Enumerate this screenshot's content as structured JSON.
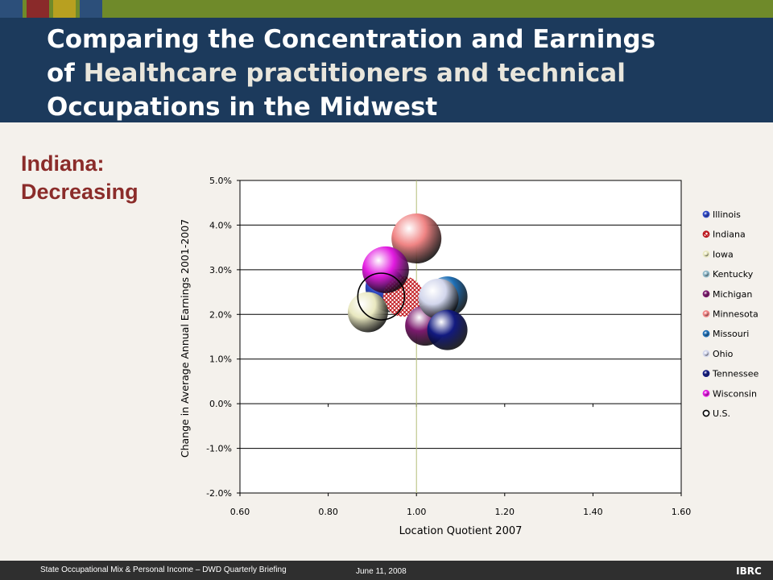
{
  "colors": {
    "band": "#1c3a5c",
    "strip": "#6f8a2a",
    "subhead": "#8b2c2a",
    "squares": [
      "#2c4f7a",
      "#8a2a2a",
      "#b8a020",
      "#2c4f7a"
    ]
  },
  "slide": {
    "title_line1": "Comparing the Concentration and Earnings",
    "title_line2_prefix": "of ",
    "title_line2_highlight": "Healthcare practitioners and technical",
    "title_line3": "Occupations in the Midwest",
    "subhead_line1": "Indiana:",
    "subhead_line2": "Decreasing"
  },
  "footer": {
    "left_text": "State Occupational Mix & Personal Income – DWD Quarterly Briefing",
    "date_text": "June 11, 2008",
    "logo_text": "IBRC"
  },
  "chart_data": {
    "type": "bubble",
    "xlabel": "Location Quotient 2007",
    "ylabel": "Change in Average Annual Earnings 2001-2007",
    "xlim": [
      0.6,
      1.6
    ],
    "ylim": [
      -2.0,
      5.0
    ],
    "x_ticks": [
      "0.60",
      "0.80",
      "1.00",
      "1.20",
      "1.40",
      "1.60"
    ],
    "y_ticks": [
      "5.0%",
      "4.0%",
      "3.0%",
      "2.0%",
      "1.0%",
      "0.0%",
      "-1.0%",
      "-2.0%"
    ],
    "grid": "horizontal",
    "reference_line_x": 1.0,
    "legend_position": "right",
    "series": [
      {
        "name": "Illinois",
        "x": 0.93,
        "y": 2.6,
        "color": "#2d47c4"
      },
      {
        "name": "Indiana",
        "x": 0.97,
        "y": 2.4,
        "color": "#b8161c",
        "pattern": "crosshatch"
      },
      {
        "name": "Iowa",
        "x": 0.89,
        "y": 2.05,
        "color": "#e9e8c0"
      },
      {
        "name": "Kentucky",
        "x": 0.94,
        "y": 2.5,
        "color": "#8fb8c8"
      },
      {
        "name": "Michigan",
        "x": 1.02,
        "y": 1.75,
        "color": "#7c1a6e"
      },
      {
        "name": "Minnesota",
        "x": 1.0,
        "y": 3.7,
        "color": "#f08484"
      },
      {
        "name": "Missouri",
        "x": 1.07,
        "y": 2.4,
        "color": "#1f6fb5"
      },
      {
        "name": "Ohio",
        "x": 1.05,
        "y": 2.35,
        "color": "#d2d6ec"
      },
      {
        "name": "Tennessee",
        "x": 1.07,
        "y": 1.65,
        "color": "#121a80"
      },
      {
        "name": "Wisconsin",
        "x": 0.93,
        "y": 3.0,
        "color": "#e21ae0"
      },
      {
        "name": "U.S.",
        "x": 0.92,
        "y": 2.4,
        "color": "none",
        "outline": "#000000"
      }
    ]
  }
}
